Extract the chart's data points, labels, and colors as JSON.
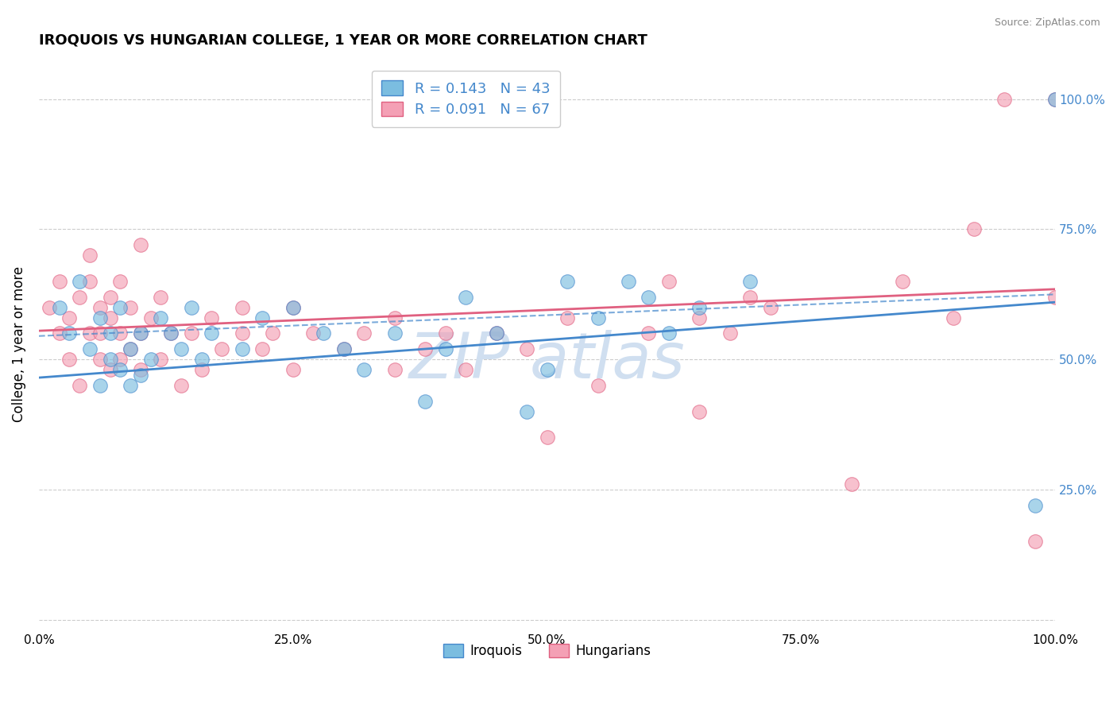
{
  "title": "IROQUOIS VS HUNGARIAN COLLEGE, 1 YEAR OR MORE CORRELATION CHART",
  "source": "Source: ZipAtlas.com",
  "ylabel": "College, 1 year or more",
  "legend_label1": "Iroquois",
  "legend_label2": "Hungarians",
  "r1": 0.143,
  "n1": 43,
  "r2": 0.091,
  "n2": 67,
  "color_blue": "#7bbde0",
  "color_pink": "#f4a0b5",
  "color_blue_line": "#4488cc",
  "color_pink_line": "#e06080",
  "color_text_blue": "#4488cc",
  "color_watermark": "#d0dff0",
  "xlim": [
    0.0,
    1.0
  ],
  "ylim": [
    -0.02,
    1.08
  ],
  "yticks": [
    0.0,
    0.25,
    0.5,
    0.75,
    1.0
  ],
  "ytick_labels": [
    "",
    "25.0%",
    "50.0%",
    "75.0%",
    "100.0%"
  ],
  "xticks": [
    0.0,
    0.25,
    0.5,
    0.75,
    1.0
  ],
  "xtick_labels": [
    "0.0%",
    "25.0%",
    "50.0%",
    "75.0%",
    "100.0%"
  ],
  "blue_line_x0": 0.0,
  "blue_line_y0": 0.465,
  "blue_line_x1": 1.0,
  "blue_line_y1": 0.61,
  "pink_line_x0": 0.0,
  "pink_line_y0": 0.555,
  "pink_line_x1": 1.0,
  "pink_line_y1": 0.635,
  "iroquois_x": [
    0.02,
    0.03,
    0.04,
    0.05,
    0.06,
    0.06,
    0.07,
    0.07,
    0.08,
    0.08,
    0.09,
    0.09,
    0.1,
    0.1,
    0.11,
    0.12,
    0.13,
    0.14,
    0.15,
    0.16,
    0.17,
    0.2,
    0.22,
    0.25,
    0.28,
    0.3,
    0.32,
    0.35,
    0.4,
    0.42,
    0.45,
    0.5,
    0.55,
    0.6,
    0.62,
    0.65,
    0.52,
    0.58,
    0.48,
    0.38,
    0.7,
    0.98,
    1.0
  ],
  "iroquois_y": [
    0.6,
    0.55,
    0.65,
    0.52,
    0.58,
    0.45,
    0.55,
    0.5,
    0.48,
    0.6,
    0.52,
    0.45,
    0.47,
    0.55,
    0.5,
    0.58,
    0.55,
    0.52,
    0.6,
    0.5,
    0.55,
    0.52,
    0.58,
    0.6,
    0.55,
    0.52,
    0.48,
    0.55,
    0.52,
    0.62,
    0.55,
    0.48,
    0.58,
    0.62,
    0.55,
    0.6,
    0.65,
    0.65,
    0.4,
    0.42,
    0.65,
    0.22,
    1.0
  ],
  "hungarian_x": [
    0.01,
    0.02,
    0.02,
    0.03,
    0.03,
    0.04,
    0.04,
    0.05,
    0.05,
    0.05,
    0.06,
    0.06,
    0.06,
    0.07,
    0.07,
    0.07,
    0.08,
    0.08,
    0.08,
    0.09,
    0.09,
    0.1,
    0.1,
    0.1,
    0.11,
    0.12,
    0.12,
    0.13,
    0.14,
    0.15,
    0.16,
    0.17,
    0.18,
    0.2,
    0.2,
    0.22,
    0.23,
    0.25,
    0.25,
    0.27,
    0.3,
    0.32,
    0.35,
    0.35,
    0.38,
    0.4,
    0.42,
    0.45,
    0.48,
    0.5,
    0.52,
    0.55,
    0.6,
    0.62,
    0.65,
    0.65,
    0.68,
    0.7,
    0.72,
    0.8,
    0.85,
    0.9,
    0.92,
    0.95,
    0.98,
    1.0,
    1.0
  ],
  "hungarian_y": [
    0.6,
    0.55,
    0.65,
    0.58,
    0.5,
    0.62,
    0.45,
    0.55,
    0.65,
    0.7,
    0.55,
    0.6,
    0.5,
    0.58,
    0.48,
    0.62,
    0.55,
    0.5,
    0.65,
    0.52,
    0.6,
    0.55,
    0.48,
    0.72,
    0.58,
    0.5,
    0.62,
    0.55,
    0.45,
    0.55,
    0.48,
    0.58,
    0.52,
    0.55,
    0.6,
    0.52,
    0.55,
    0.48,
    0.6,
    0.55,
    0.52,
    0.55,
    0.48,
    0.58,
    0.52,
    0.55,
    0.48,
    0.55,
    0.52,
    0.35,
    0.58,
    0.45,
    0.55,
    0.65,
    0.58,
    0.4,
    0.55,
    0.62,
    0.6,
    0.26,
    0.65,
    0.58,
    0.75,
    1.0,
    0.15,
    1.0,
    0.62
  ]
}
